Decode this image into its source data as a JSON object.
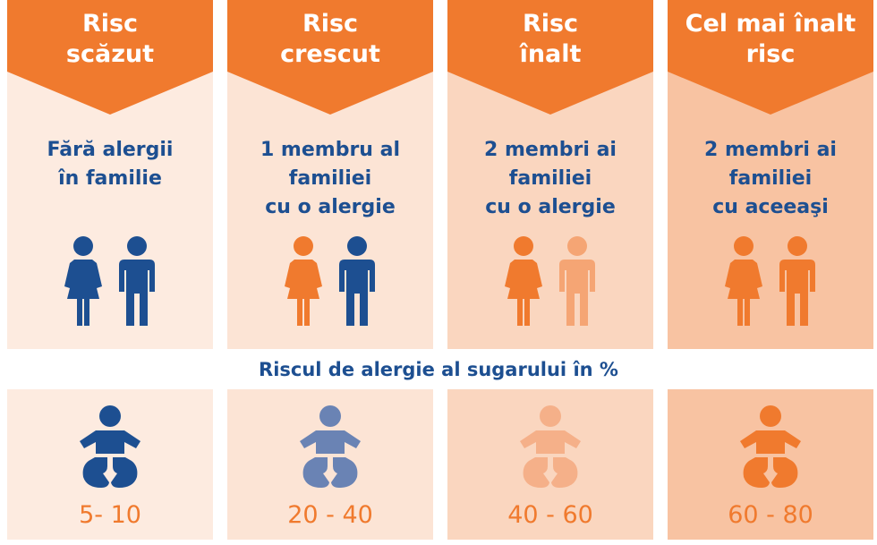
{
  "columns": [
    {
      "risk": "Risc\nscăzut",
      "family": "Fără alergii\nîn familie",
      "baby_risk": "5- 10",
      "colors": {
        "band": "#fdebe0",
        "woman": "#1d4f91",
        "man": "#1d4f91",
        "baby": "#1d4f91"
      }
    },
    {
      "risk": "Risc\ncrescut",
      "family": "1 membru al\nfamiliei\ncu o alergie",
      "baby_risk": "20 - 40",
      "colors": {
        "band": "#fce4d5",
        "woman": "#f07a2e",
        "man": "#1d4f91",
        "baby": "#6a83b4"
      }
    },
    {
      "risk": "Risc\nînalt",
      "family": "2 membri ai\nfamiliei\ncu o alergie",
      "baby_risk": "40 - 60",
      "colors": {
        "band": "#fad6bf",
        "woman": "#f07a2e",
        "man": "#f5a574",
        "baby": "#f5b089"
      }
    },
    {
      "risk": "Cel mai înalt\nrisc",
      "family": "2 membri ai\nfamiliei\ncu aceeaşi",
      "baby_risk": "60 - 80",
      "colors": {
        "band": "#f8c3a2",
        "woman": "#f07a2e",
        "man": "#f07a2e",
        "baby": "#f07a2e"
      }
    }
  ],
  "infant_risk_label": "Riscul de alergie al sugarului în %",
  "colors": {
    "banner": "#f07a2e",
    "text_blue": "#1d4f91",
    "text_orange": "#f07a2e"
  }
}
